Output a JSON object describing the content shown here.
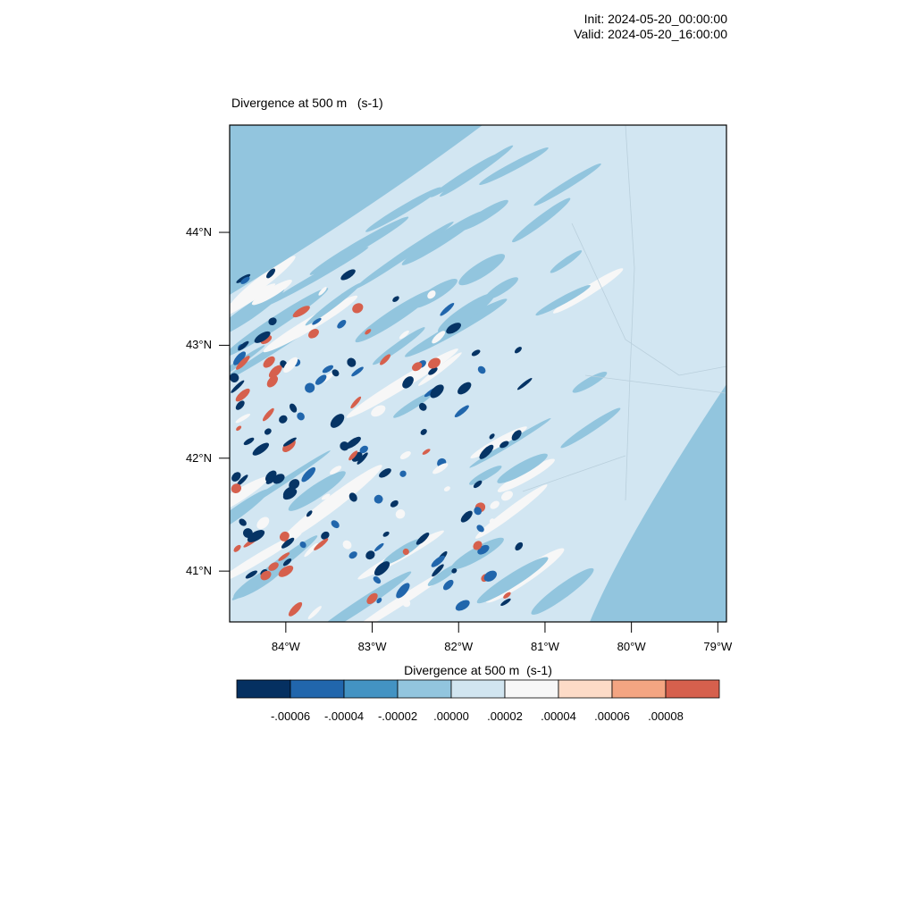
{
  "header": {
    "init": "Init: 2024-05-20_00:00:00",
    "valid": "Valid: 2024-05-20_16:00:00"
  },
  "map": {
    "title": "Divergence at 500 m   (s-1)",
    "lat_ticks": [
      "44°N",
      "43°N",
      "42°N",
      "41°N"
    ],
    "lon_ticks": [
      "84°W",
      "83°W",
      "82°W",
      "81°W",
      "80°W",
      "79°W"
    ],
    "lat_values": [
      44,
      43,
      42,
      41
    ],
    "lon_values": [
      -84,
      -83,
      -82,
      -81,
      -80,
      -79
    ],
    "extent": {
      "lon_min": -84.65,
      "lon_max": -78.9,
      "lat_min": 40.55,
      "lat_max": 44.95
    },
    "field_colors": {
      "background": "#d2e6f2",
      "band": "#92c5de",
      "strong_neg": "#063465",
      "neg": "#2166ac",
      "pos": "#d6604d",
      "zero_white": "#f7f7f7"
    }
  },
  "colorbar": {
    "title": "Divergence at 500 m  (s-1)",
    "colors": [
      "#053061",
      "#2166ac",
      "#4393c3",
      "#92c5de",
      "#d1e5f0",
      "#f7f7f7",
      "#fddbc7",
      "#f4a582",
      "#d6604d"
    ],
    "labels": [
      "-.00006",
      "-.00004",
      "-.00002",
      ".00000",
      ".00002",
      ".00004",
      ".00006",
      ".00008"
    ]
  }
}
